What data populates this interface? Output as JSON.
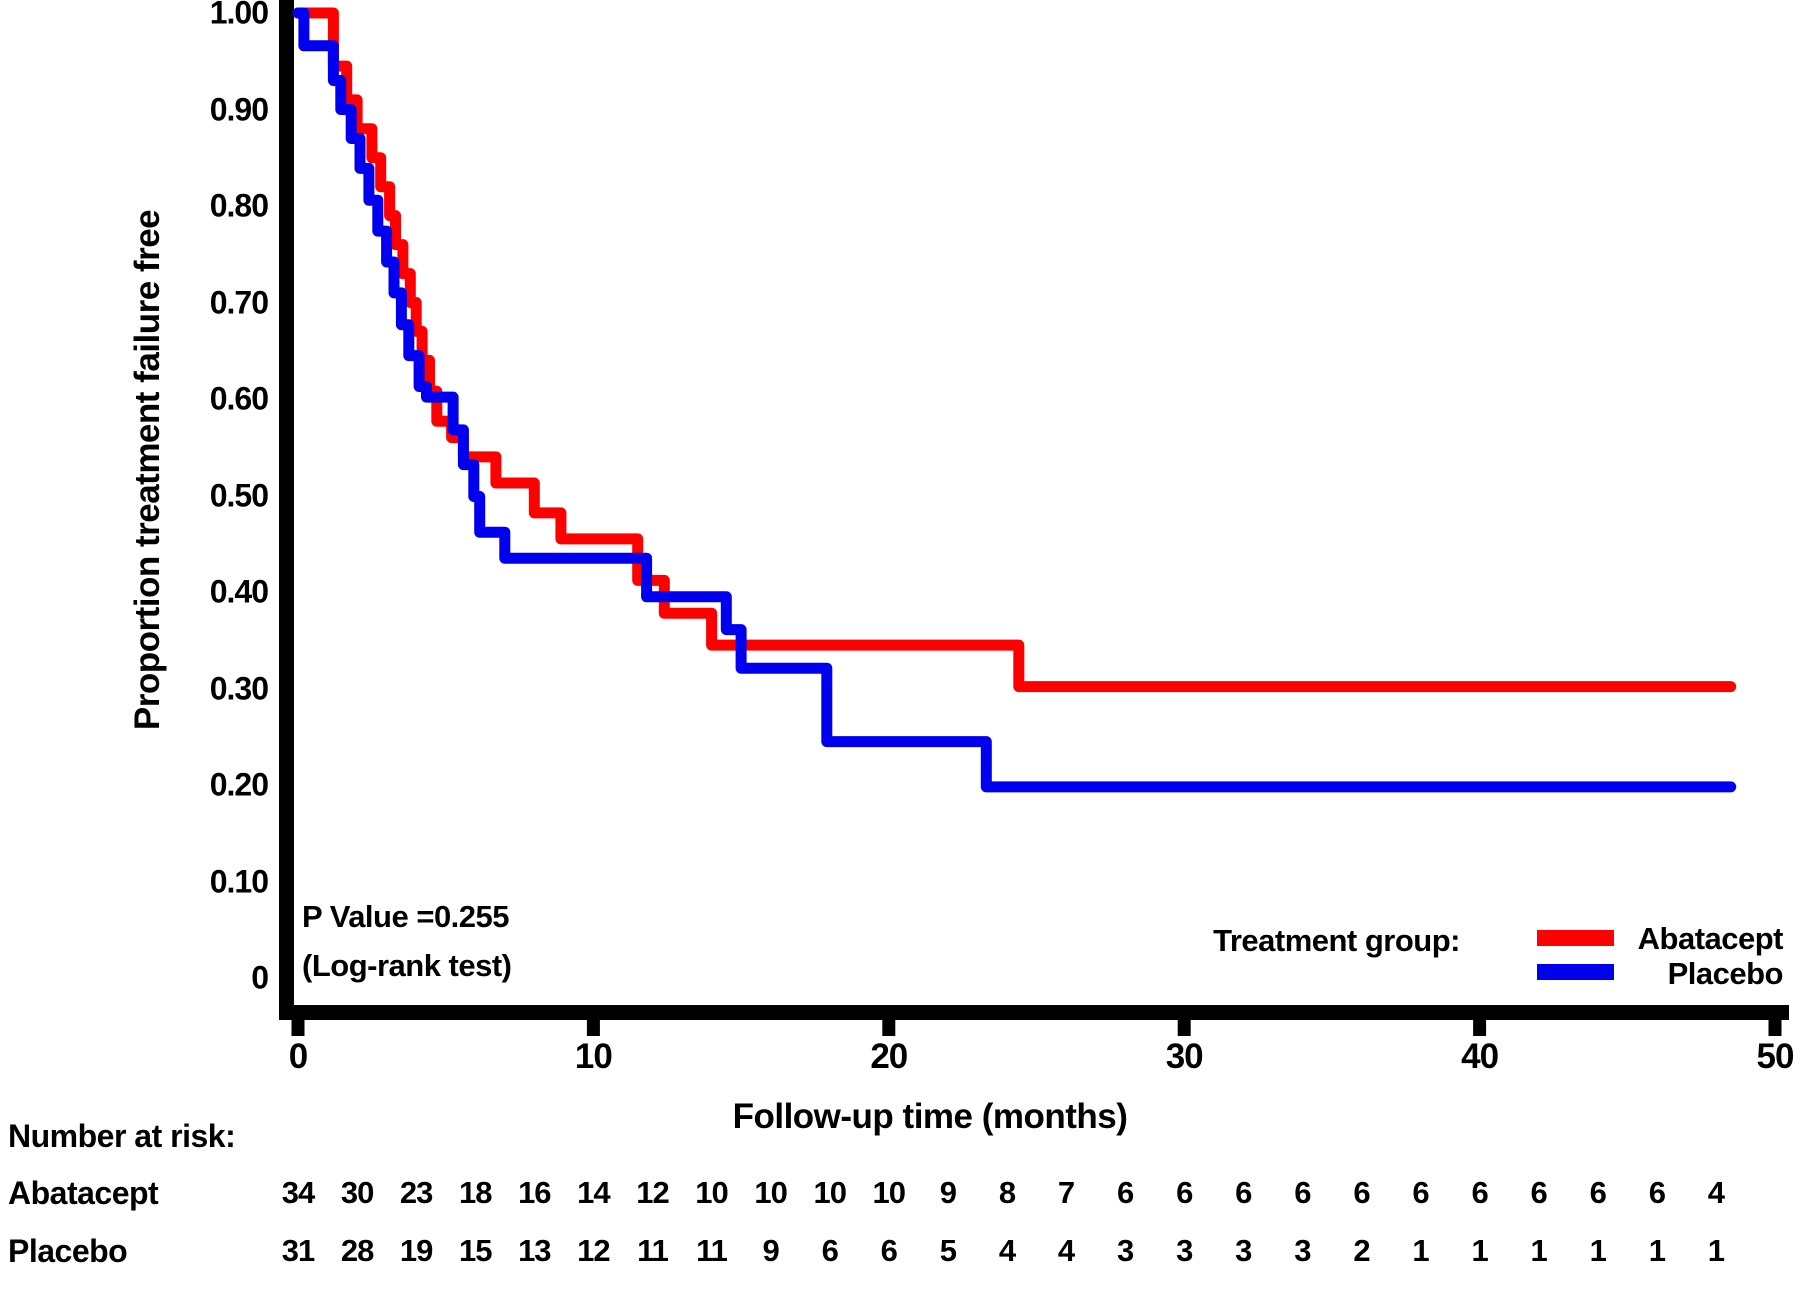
{
  "chart_data": {
    "type": "line",
    "subtype": "kaplan-meier-step",
    "title": "",
    "xlabel": "Follow-up time (months)",
    "ylabel": "Proportion treatment failure free",
    "xlim": [
      0,
      50
    ],
    "ylim": [
      0,
      1.0
    ],
    "grid": "off",
    "x_ticks": [
      {
        "label": "0",
        "value": 0
      },
      {
        "label": "10",
        "value": 10
      },
      {
        "label": "20",
        "value": 20
      },
      {
        "label": "30",
        "value": 30
      },
      {
        "label": "40",
        "value": 40
      },
      {
        "label": "50",
        "value": 50
      }
    ],
    "y_ticks": [
      {
        "label": "1.00",
        "value": 1.0
      },
      {
        "label": "0.90",
        "value": 0.9
      },
      {
        "label": "0.80",
        "value": 0.8
      },
      {
        "label": "0.70",
        "value": 0.7
      },
      {
        "label": "0.60",
        "value": 0.6
      },
      {
        "label": "0.50",
        "value": 0.5
      },
      {
        "label": "0.40",
        "value": 0.4
      },
      {
        "label": "0.30",
        "value": 0.3
      },
      {
        "label": "0.20",
        "value": 0.2
      },
      {
        "label": "0.10",
        "value": 0.1
      },
      {
        "label": "0",
        "value": 0.0
      }
    ],
    "annotation": {
      "line1": "P Value =0.255",
      "line2": "(Log-rank test)"
    },
    "legend": {
      "title": "Treatment group:",
      "position": "bottom-right-inside",
      "entries": [
        {
          "label": "Abatacept",
          "color": "#FF0000"
        },
        {
          "label": "Placebo",
          "color": "#0000EE"
        }
      ]
    },
    "end_month": 48.5,
    "series": [
      {
        "name": "Abatacept",
        "color": "#FF0000",
        "steps": [
          [
            0,
            1.0
          ],
          [
            1.2,
            0.945
          ],
          [
            1.65,
            0.91
          ],
          [
            2.0,
            0.88
          ],
          [
            2.5,
            0.85
          ],
          [
            2.8,
            0.82
          ],
          [
            3.1,
            0.79
          ],
          [
            3.3,
            0.76
          ],
          [
            3.55,
            0.73
          ],
          [
            3.8,
            0.7
          ],
          [
            4.0,
            0.67
          ],
          [
            4.2,
            0.64
          ],
          [
            4.45,
            0.608
          ],
          [
            4.7,
            0.577
          ],
          [
            5.2,
            0.56
          ],
          [
            5.6,
            0.54
          ],
          [
            6.7,
            0.513
          ],
          [
            8.0,
            0.482
          ],
          [
            8.9,
            0.455
          ],
          [
            11.5,
            0.412
          ],
          [
            12.4,
            0.378
          ],
          [
            14.0,
            0.345
          ],
          [
            24.4,
            0.302
          ]
        ]
      },
      {
        "name": "Placebo",
        "color": "#0000EE",
        "steps": [
          [
            0,
            1.0
          ],
          [
            0.2,
            0.966
          ],
          [
            1.2,
            0.93
          ],
          [
            1.45,
            0.9
          ],
          [
            1.8,
            0.87
          ],
          [
            2.1,
            0.839
          ],
          [
            2.4,
            0.806
          ],
          [
            2.7,
            0.774
          ],
          [
            3.0,
            0.742
          ],
          [
            3.25,
            0.71
          ],
          [
            3.5,
            0.677
          ],
          [
            3.75,
            0.645
          ],
          [
            4.1,
            0.613
          ],
          [
            4.35,
            0.602
          ],
          [
            5.25,
            0.568
          ],
          [
            5.6,
            0.532
          ],
          [
            5.95,
            0.499
          ],
          [
            6.15,
            0.462
          ],
          [
            7.0,
            0.435
          ],
          [
            11.8,
            0.395
          ],
          [
            14.5,
            0.361
          ],
          [
            15.0,
            0.321
          ],
          [
            17.9,
            0.245
          ],
          [
            23.3,
            0.198
          ]
        ]
      }
    ],
    "risk_table": {
      "heading": "Number at risk:",
      "months": [
        0,
        2,
        4,
        6,
        8,
        10,
        12,
        14,
        16,
        18,
        20,
        22,
        24,
        26,
        28,
        30,
        32,
        34,
        36,
        38,
        40,
        42,
        44,
        46,
        48
      ],
      "rows": [
        {
          "label": "Abatacept",
          "values": [
            34,
            30,
            23,
            18,
            16,
            14,
            12,
            10,
            10,
            10,
            10,
            9,
            8,
            7,
            6,
            6,
            6,
            6,
            6,
            6,
            6,
            6,
            6,
            6,
            4
          ]
        },
        {
          "label": "Placebo",
          "values": [
            31,
            28,
            19,
            15,
            13,
            12,
            11,
            11,
            9,
            6,
            6,
            5,
            4,
            4,
            3,
            3,
            3,
            3,
            2,
            1,
            1,
            1,
            1,
            1,
            1
          ]
        }
      ]
    },
    "colors": {
      "axis": "#000000",
      "text": "#000000",
      "background": "#FFFFFF"
    }
  }
}
